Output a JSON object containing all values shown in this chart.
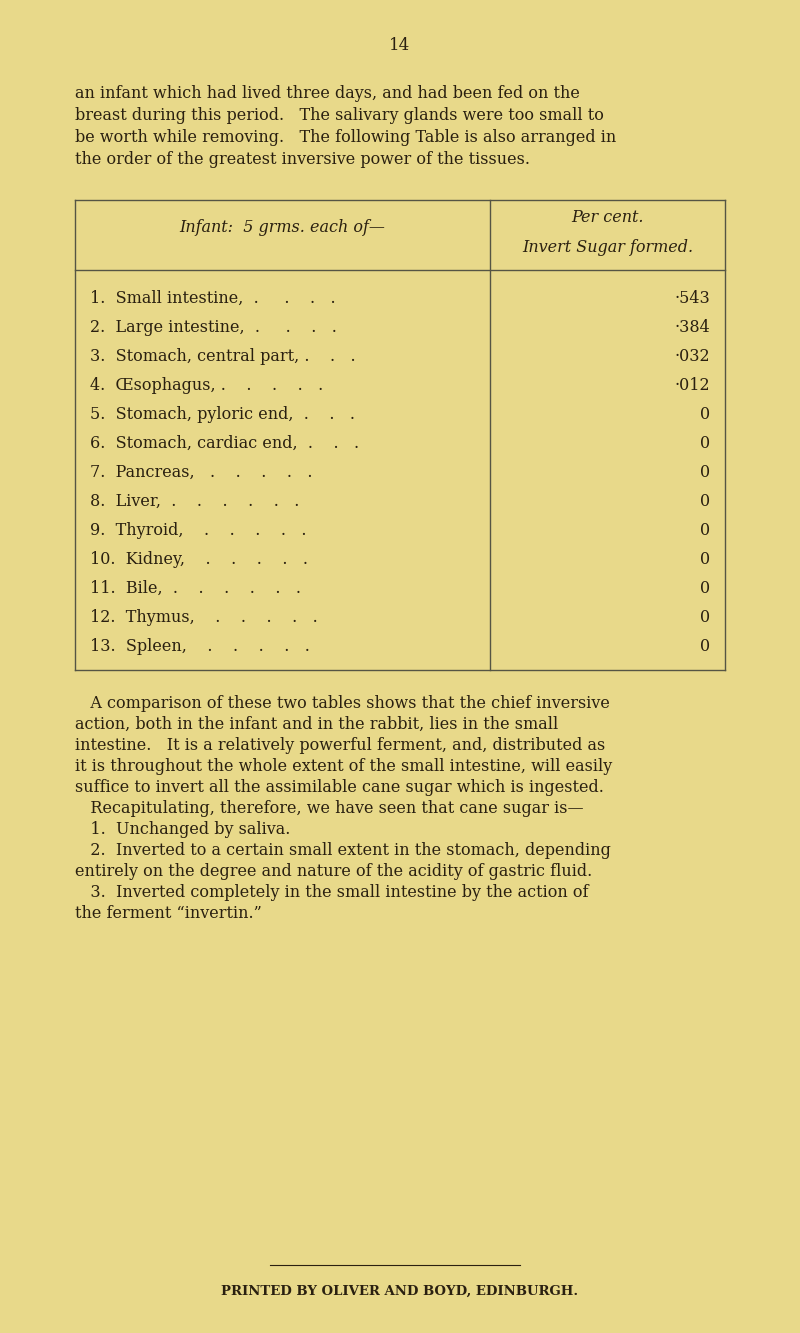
{
  "background_color": "#e8d98a",
  "page_number": "14",
  "intro_text": [
    "an infant which had lived three days, and had been fed on the",
    "breast during this period.   The salivary glands were too small to",
    "be worth while removing.   The following Table is also arranged in",
    "the order of the greatest inversive power of the tissues."
  ],
  "table_header_left": "Infant:  5 grms. each of—",
  "table_header_right_line1": "Per cent.",
  "table_header_right_line2": "Invert Sugar formed.",
  "table_rows": [
    [
      "1.  Small intestine,  .     .    .   .",
      "·543"
    ],
    [
      "2.  Large intestine,  .     .    .   .",
      "·384"
    ],
    [
      "3.  Stomach, central part, .    .   .",
      "·032"
    ],
    [
      "4.  Œsophagus, .    .    .    .   .",
      "·012"
    ],
    [
      "5.  Stomach, pyloric end,  .    .   .",
      "0"
    ],
    [
      "6.  Stomach, cardiac end,  .    .   .",
      "0"
    ],
    [
      "7.  Pancreas,   .    .    .    .   .",
      "0"
    ],
    [
      "8.  Liver,  .    .    .    .    .   .",
      "0"
    ],
    [
      "9.  Thyroid,    .    .    .    .   .",
      "0"
    ],
    [
      "10.  Kidney,    .    .    .    .   .",
      "0"
    ],
    [
      "11.  Bile,  .    .    .    .    .   .",
      "0"
    ],
    [
      "12.  Thymus,    .    .    .    .   .",
      "0"
    ],
    [
      "13.  Spleen,    .    .    .    .   .",
      "0"
    ]
  ],
  "body_text": [
    "   A comparison of these two tables shows that the chief inversive",
    "action, both in the infant and in the rabbit, lies in the small",
    "intestine.   It is a relatively powerful ferment, and, distributed as",
    "it is throughout the whole extent of the small intestine, will easily",
    "suffice to invert all the assimilable cane sugar which is ingested.",
    "   Recapitulating, therefore, we have seen that cane sugar is—",
    "   1.  Unchanged by saliva.",
    "   2.  Inverted to a certain small extent in the stomach, depending",
    "entirely on the degree and nature of the acidity of gastric fluid.",
    "   3.  Inverted completely in the small intestine by the action of",
    "the ferment “invertin.”"
  ],
  "footer_text": "PRINTED BY OLIVER AND BOYD, EDINBURGH.",
  "text_color": "#2a2010",
  "table_line_color": "#555544",
  "font_size_body": 11.5,
  "font_size_header": 11.5,
  "font_size_page_num": 12,
  "font_size_footer": 9.5
}
